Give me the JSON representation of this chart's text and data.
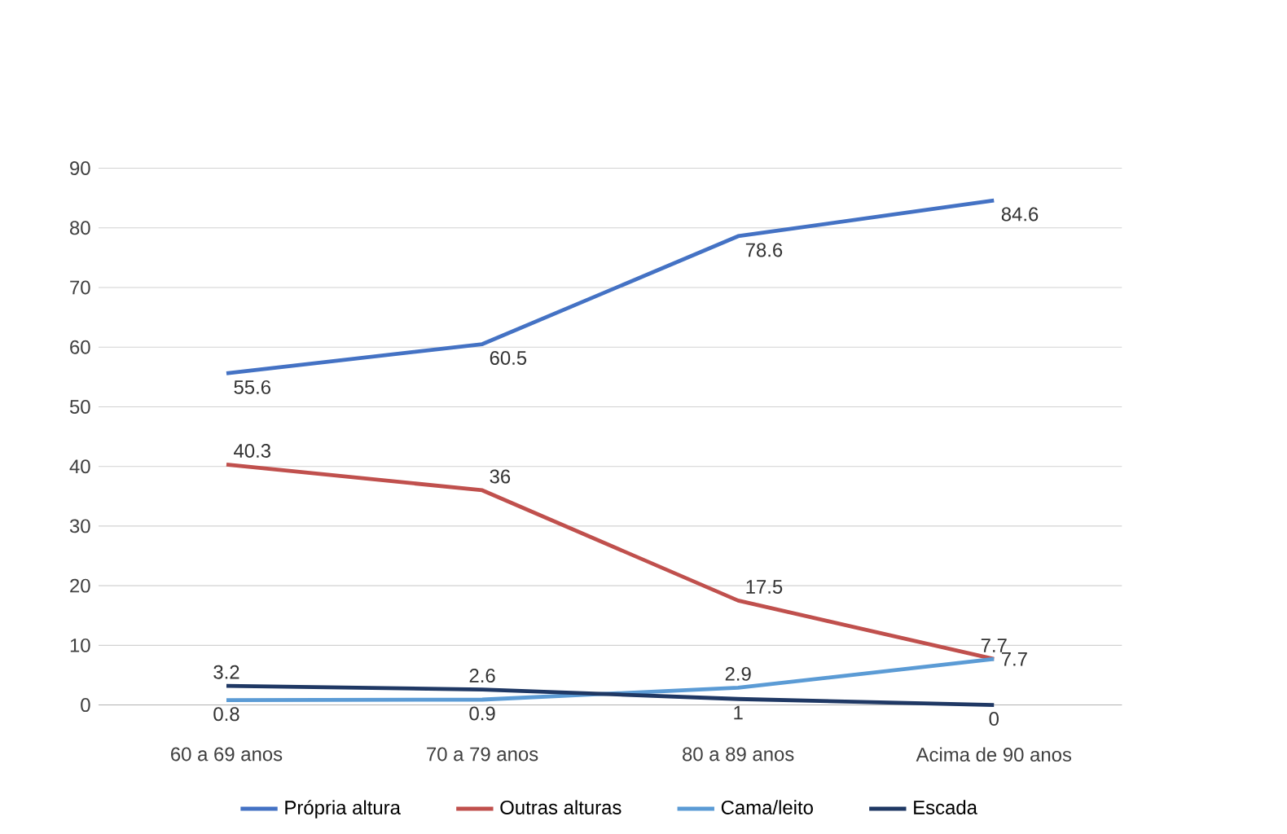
{
  "chart_data": {
    "type": "line",
    "categories": [
      "60 a 69 anos",
      "70 a 79 anos",
      "80 a 89 anos",
      "Acima de 90 anos"
    ],
    "series": [
      {
        "name": "Própria altura",
        "color": "#4472c4",
        "values": [
          55.6,
          60.5,
          78.6,
          84.6
        ]
      },
      {
        "name": "Outras alturas",
        "color": "#c0504d",
        "values": [
          40.3,
          36,
          17.5,
          7.7
        ]
      },
      {
        "name": "Cama/leito",
        "color": "#5b9bd5",
        "values": [
          0.8,
          0.9,
          2.9,
          7.7
        ]
      },
      {
        "name": "Escada",
        "color": "#1f3864",
        "values": [
          3.2,
          2.6,
          1,
          0
        ]
      }
    ],
    "ylim": [
      0,
      90
    ],
    "yticks": [
      0,
      10,
      20,
      30,
      40,
      50,
      60,
      70,
      80,
      90
    ],
    "grid": "y",
    "legend": "bottom",
    "marker": "none",
    "line_style": "solid",
    "data_labels": true
  }
}
